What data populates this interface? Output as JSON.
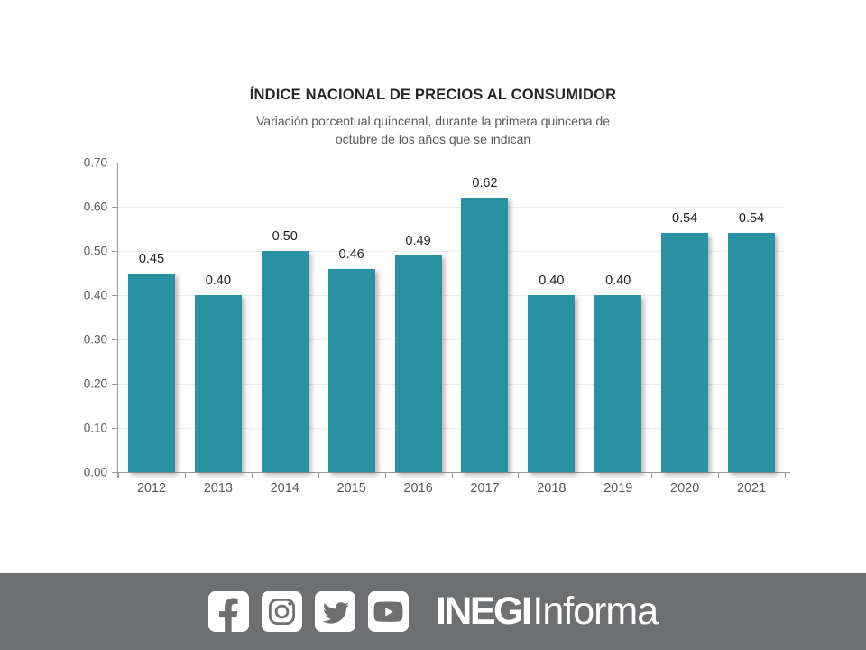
{
  "slide": {
    "title": "ÍNDICE NACIONAL DE PRECIOS AL CONSUMIDOR",
    "subtitle_line1": "Variación porcentual quincenal, durante la primera quincena de",
    "subtitle_line2": "octubre de los años que se indican"
  },
  "chart_data": {
    "type": "bar",
    "title": "ÍNDICE NACIONAL DE PRECIOS AL CONSUMIDOR",
    "subtitle": "Variación porcentual quincenal, durante la primera quincena de octubre de los años que se indican",
    "categories": [
      "2012",
      "2013",
      "2014",
      "2015",
      "2016",
      "2017",
      "2018",
      "2019",
      "2020",
      "2021"
    ],
    "values": [
      0.45,
      0.4,
      0.5,
      0.46,
      0.49,
      0.62,
      0.4,
      0.4,
      0.54,
      0.54
    ],
    "value_labels": [
      "0.45",
      "0.40",
      "0.50",
      "0.46",
      "0.49",
      "0.62",
      "0.40",
      "0.40",
      "0.54",
      "0.54"
    ],
    "ylim": [
      0.0,
      0.7
    ],
    "y_ticks": [
      "0.00",
      "0.10",
      "0.20",
      "0.30",
      "0.40",
      "0.50",
      "0.60",
      "0.70"
    ],
    "grid": true,
    "legend": false,
    "data_labels": true,
    "bar_color": "#2a91a3",
    "xlabel": "",
    "ylabel": ""
  },
  "footer": {
    "background": "#6d6f71",
    "icon_color": "#6d6f71",
    "icons": [
      "facebook-icon",
      "instagram-icon",
      "twitter-icon",
      "youtube-icon"
    ],
    "brand_bold": "INEGI",
    "brand_light": "Informa"
  }
}
